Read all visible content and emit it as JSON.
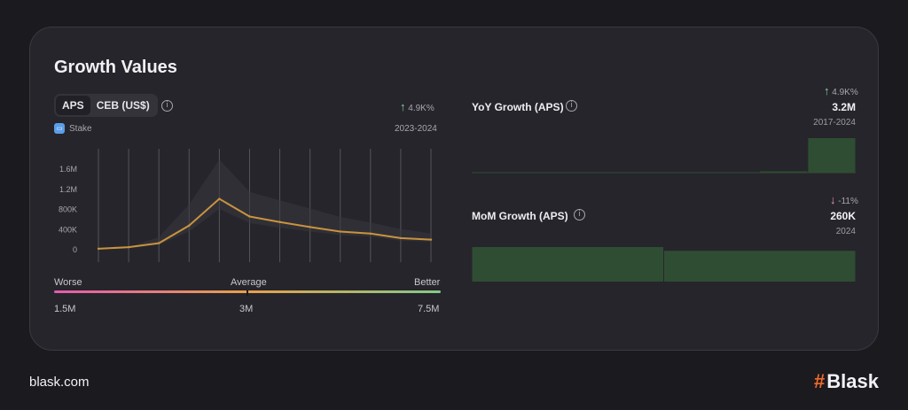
{
  "title": "Growth Values",
  "toggle": {
    "options": [
      "APS",
      "CEB (US$)"
    ],
    "active": "APS"
  },
  "legend": {
    "label": "Stake",
    "icon": "stake-logo-icon",
    "color": "#5b9ee8"
  },
  "main_stat": {
    "arrow": "↑",
    "value": "4.9K%",
    "period": "2023-2024"
  },
  "scale": {
    "worse": "Worse",
    "average": "Average",
    "better": "Better",
    "min": "1.5M",
    "mid": "3M",
    "max": "7.5M"
  },
  "yoy": {
    "label": "YoY Growth (APS)",
    "arrow": "↑",
    "pct": "4.9K%",
    "value": "3.2M",
    "period": "2017-2024"
  },
  "mom": {
    "label": "MoM Growth (APS)",
    "arrow": "↓",
    "pct": "-11%",
    "value": "260K",
    "period": "2024"
  },
  "footer": {
    "site": "blask.com",
    "brand_hash": "#",
    "brand": "Blask"
  },
  "colors": {
    "line": "#c8943e",
    "bar": "#2f4d33",
    "band": "#3a393f",
    "up": "#8bd3a2",
    "down": "#e896b4"
  },
  "chart_data": [
    {
      "type": "line",
      "name": "Stake APS",
      "x": [
        1,
        2,
        3,
        4,
        5,
        6,
        7,
        8,
        9,
        10,
        11,
        12
      ],
      "values": [
        20000,
        50000,
        130000,
        480000,
        1010000,
        660000,
        550000,
        450000,
        360000,
        320000,
        230000,
        200000
      ],
      "band_upper": [
        20000,
        50000,
        250000,
        900000,
        1790000,
        1150000,
        980000,
        820000,
        650000,
        540000,
        410000,
        320000
      ],
      "band_lower": [
        20000,
        50000,
        100000,
        360000,
        810000,
        530000,
        440000,
        360000,
        290000,
        260000,
        180000,
        160000
      ],
      "yticks": [
        "0",
        "400K",
        "800K",
        "1.2M",
        "1.6M"
      ],
      "ytick_values": [
        0,
        400000,
        800000,
        1200000,
        1600000
      ],
      "ylim": [
        0,
        1700000
      ],
      "grid": "vertical"
    },
    {
      "type": "bar",
      "name": "YoY Growth (APS)",
      "categories": [
        "2017",
        "2018",
        "2019",
        "2020",
        "2021",
        "2022",
        "2023",
        "2024"
      ],
      "values": [
        0,
        0,
        0,
        0,
        0,
        0,
        0.065,
        3.2
      ],
      "ylim": [
        0,
        3.2
      ]
    },
    {
      "type": "bar",
      "name": "MoM Growth (APS)",
      "categories": [
        "1",
        "2"
      ],
      "values": [
        292,
        260
      ],
      "ylim": [
        0,
        292
      ]
    }
  ]
}
